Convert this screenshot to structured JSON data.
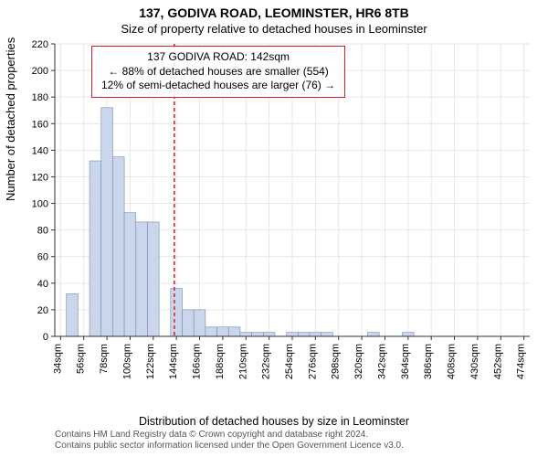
{
  "header": {
    "title": "137, GODIVA ROAD, LEOMINSTER, HR6 8TB",
    "subtitle": "Size of property relative to detached houses in Leominster"
  },
  "annotation": {
    "line1": "137 GODIVA ROAD: 142sqm",
    "line2": "← 88% of detached houses are smaller (554)",
    "line3": "12% of semi-detached houses are larger (76) →"
  },
  "ylabel": "Number of detached properties",
  "xlabel": "Distribution of detached houses by size in Leominster",
  "credits": {
    "line1": "Contains HM Land Registry data © Crown copyright and database right 2024.",
    "line2": "Contains public sector information licensed under the Open Government Licence v3.0."
  },
  "chart": {
    "type": "bar",
    "ylim": [
      0,
      220
    ],
    "ytick_step": 20,
    "yticks": [
      0,
      20,
      40,
      60,
      80,
      100,
      120,
      140,
      160,
      180,
      200,
      220
    ],
    "xtick_labels": [
      "34sqm",
      "56sqm",
      "78sqm",
      "100sqm",
      "122sqm",
      "144sqm",
      "166sqm",
      "188sqm",
      "210sqm",
      "232sqm",
      "254sqm",
      "276sqm",
      "298sqm",
      "320sqm",
      "342sqm",
      "364sqm",
      "386sqm",
      "408sqm",
      "430sqm",
      "452sqm",
      "474sqm"
    ],
    "categories_start": 34,
    "categories_step": 11,
    "n_bars": 41,
    "values": [
      0,
      32,
      0,
      132,
      172,
      135,
      93,
      86,
      86,
      0,
      36,
      20,
      20,
      7,
      7,
      7,
      3,
      3,
      3,
      0,
      3,
      3,
      3,
      3,
      0,
      0,
      0,
      3,
      0,
      0,
      3,
      0,
      0,
      0,
      0,
      0,
      0,
      0,
      0,
      0,
      0
    ],
    "bar_fill": "#c9d6ec",
    "bar_stroke": "#7a8aa8",
    "background": "#ffffff",
    "grid_color": "#e6e6e6",
    "axis_color": "#333333",
    "reference_line_x": 142,
    "reference_line_color": "#d02020",
    "reference_line_dash": "4,3",
    "tick_fontsize": 11,
    "label_fontsize": 13
  }
}
